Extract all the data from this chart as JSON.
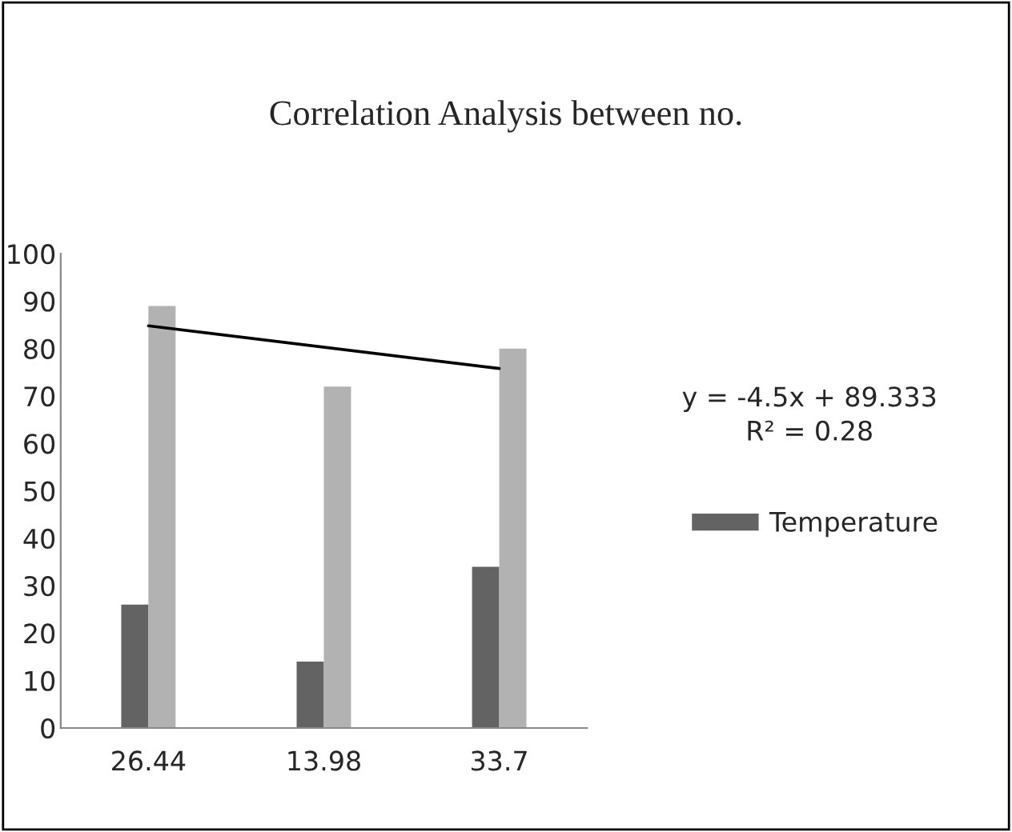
{
  "chart_data": {
    "type": "bar",
    "title": "Correlation Analysis between no.",
    "categories": [
      "26.44",
      "13.98",
      "33.7"
    ],
    "series": [
      {
        "name": "Temperature",
        "color": "#636363",
        "values": [
          26,
          14,
          34
        ]
      },
      {
        "color": "#b2b2b2",
        "values": [
          89,
          72,
          80
        ]
      },
      {
        "type": "line",
        "color": "#000000",
        "x": [
          "26.44",
          "33.7"
        ],
        "values": [
          84.8,
          75.8
        ]
      }
    ],
    "ylim": [
      0,
      100
    ],
    "yticks": [
      0,
      10,
      20,
      30,
      40,
      50,
      60,
      70,
      80,
      90,
      100
    ],
    "annotations": [
      "y = -4.5x + 89.333\nR² = 0.28"
    ],
    "legend": "right",
    "grid": false
  }
}
